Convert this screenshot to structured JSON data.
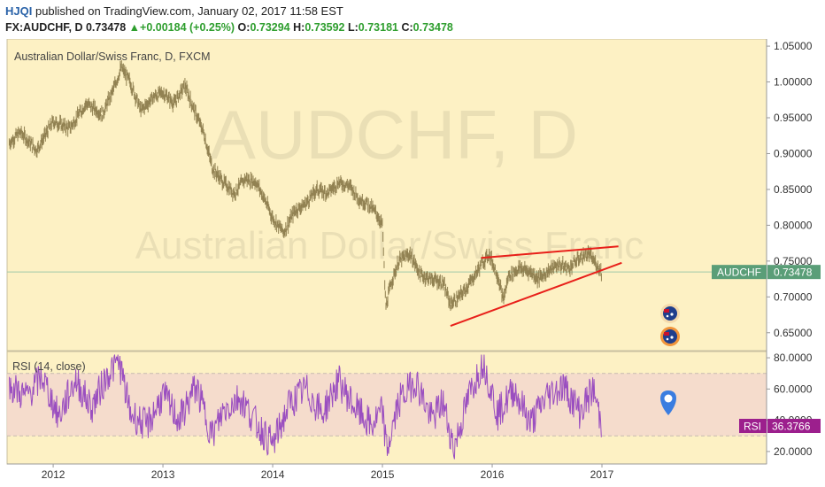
{
  "header": {
    "username": "HJQI",
    "published_text": "published on TradingView.com, January 02, 2017 11:58 EST",
    "symbol_line": "FX:AUDCHF, D",
    "last_price": "0.73478",
    "change_arrow": "▲",
    "change_text": "+0.00184 (+0.25%)",
    "o_label": "O:",
    "o_value": "0.73294",
    "h_label": "H:",
    "h_value": "0.73592",
    "l_label": "L:",
    "l_value": "0.73181",
    "c_label": "C:",
    "c_value": "0.73478"
  },
  "colors": {
    "panel_bg": "#fdf1c4",
    "candles": "#8a7a4a",
    "trendline": "#e8201a",
    "rsi_line": "#9a4ec0",
    "rsi_band": "#f3d8ce",
    "price_label_bg": "#5a9e78",
    "rsi_label_bg": "#9c1f8d",
    "marker": "#3a7de0"
  },
  "chart_data": [
    {
      "type": "line",
      "title": "Australian Dollar/Swiss Franc, D, FXCM",
      "watermark_symbol": "AUDCHF, D",
      "watermark_name": "Australian Dollar/Swiss Franc",
      "x_tick_labels": [
        "2012",
        "2013",
        "2014",
        "2015",
        "2016",
        "2017"
      ],
      "x_ticks_year": [
        2012,
        2013,
        2014,
        2015,
        2016,
        2017
      ],
      "y_tick_labels": [
        "1.05000",
        "1.00000",
        "0.95000",
        "0.90000",
        "0.85000",
        "0.80000",
        "0.75000",
        "0.70000",
        "0.65000"
      ],
      "y_ticks": [
        1.05,
        1.0,
        0.95,
        0.9,
        0.85,
        0.8,
        0.75,
        0.7,
        0.65
      ],
      "ylim": [
        0.625,
        1.06
      ],
      "xlim": [
        2011.58,
        2018.5
      ],
      "series": [
        {
          "name": "AUDCHF",
          "x": [
            2011.6,
            2011.7,
            2011.85,
            2012.0,
            2012.15,
            2012.3,
            2012.45,
            2012.55,
            2012.62,
            2012.7,
            2012.8,
            2012.92,
            2013.0,
            2013.1,
            2013.2,
            2013.3,
            2013.37,
            2013.45,
            2013.55,
            2013.65,
            2013.75,
            2013.85,
            2013.93,
            2014.0,
            2014.1,
            2014.2,
            2014.3,
            2014.4,
            2014.5,
            2014.6,
            2014.7,
            2014.8,
            2014.87,
            2014.95,
            2015.0,
            2015.03,
            2015.08,
            2015.15,
            2015.25,
            2015.35,
            2015.45,
            2015.55,
            2015.62,
            2015.7,
            2015.8,
            2015.9,
            2015.97,
            2016.05,
            2016.1,
            2016.15,
            2016.25,
            2016.35,
            2016.42,
            2016.5,
            2016.6,
            2016.7,
            2016.8,
            2016.88,
            2016.95,
            2017.0
          ],
          "values": [
            0.915,
            0.93,
            0.905,
            0.945,
            0.935,
            0.97,
            0.955,
            0.99,
            1.02,
            1.0,
            0.96,
            0.98,
            0.985,
            0.97,
            0.995,
            0.955,
            0.93,
            0.88,
            0.86,
            0.845,
            0.865,
            0.86,
            0.835,
            0.81,
            0.79,
            0.82,
            0.83,
            0.85,
            0.845,
            0.86,
            0.855,
            0.835,
            0.83,
            0.815,
            0.8,
            0.685,
            0.72,
            0.75,
            0.76,
            0.73,
            0.725,
            0.72,
            0.69,
            0.7,
            0.72,
            0.745,
            0.76,
            0.73,
            0.695,
            0.73,
            0.74,
            0.735,
            0.725,
            0.735,
            0.745,
            0.74,
            0.755,
            0.76,
            0.745,
            0.735
          ]
        }
      ],
      "current_value_label": "AUDCHF",
      "current_value": "0.73478",
      "current_value_num": 0.73478,
      "trendlines": [
        {
          "x1": 2015.9,
          "y1": 0.7545,
          "x2": 2017.15,
          "y2": 0.7705
        },
        {
          "x1": 2015.62,
          "y1": 0.6595,
          "x2": 2017.18,
          "y2": 0.7475
        }
      ]
    },
    {
      "type": "line",
      "title": "RSI (14, close)",
      "y_tick_labels": [
        "80.0000",
        "60.0000",
        "40.0000",
        "20.0000"
      ],
      "y_ticks": [
        80,
        60,
        40,
        20
      ],
      "ylim": [
        12,
        84
      ],
      "overbought": 70,
      "oversold": 30,
      "xlim": [
        2011.58,
        2018.5
      ],
      "series": [
        {
          "name": "RSI",
          "x": [
            2011.6,
            2011.75,
            2011.9,
            2012.05,
            2012.2,
            2012.35,
            2012.5,
            2012.6,
            2012.7,
            2012.85,
            2013.0,
            2013.15,
            2013.3,
            2013.45,
            2013.55,
            2013.7,
            2013.85,
            2014.0,
            2014.15,
            2014.3,
            2014.45,
            2014.6,
            2014.75,
            2014.9,
            2015.0,
            2015.04,
            2015.15,
            2015.3,
            2015.45,
            2015.55,
            2015.65,
            2015.8,
            2015.92,
            2016.05,
            2016.2,
            2016.35,
            2016.5,
            2016.65,
            2016.8,
            2016.92,
            2017.0
          ],
          "values": [
            62,
            55,
            68,
            42,
            66,
            48,
            70,
            78,
            45,
            36,
            56,
            40,
            62,
            30,
            46,
            55,
            38,
            24,
            50,
            60,
            44,
            65,
            48,
            36,
            46,
            20,
            52,
            66,
            40,
            52,
            22,
            58,
            78,
            44,
            60,
            38,
            56,
            62,
            45,
            60,
            36.3766
          ]
        }
      ],
      "current_value_label": "RSI",
      "current_value": "36.3766",
      "current_value_num": 36.3766
    }
  ]
}
